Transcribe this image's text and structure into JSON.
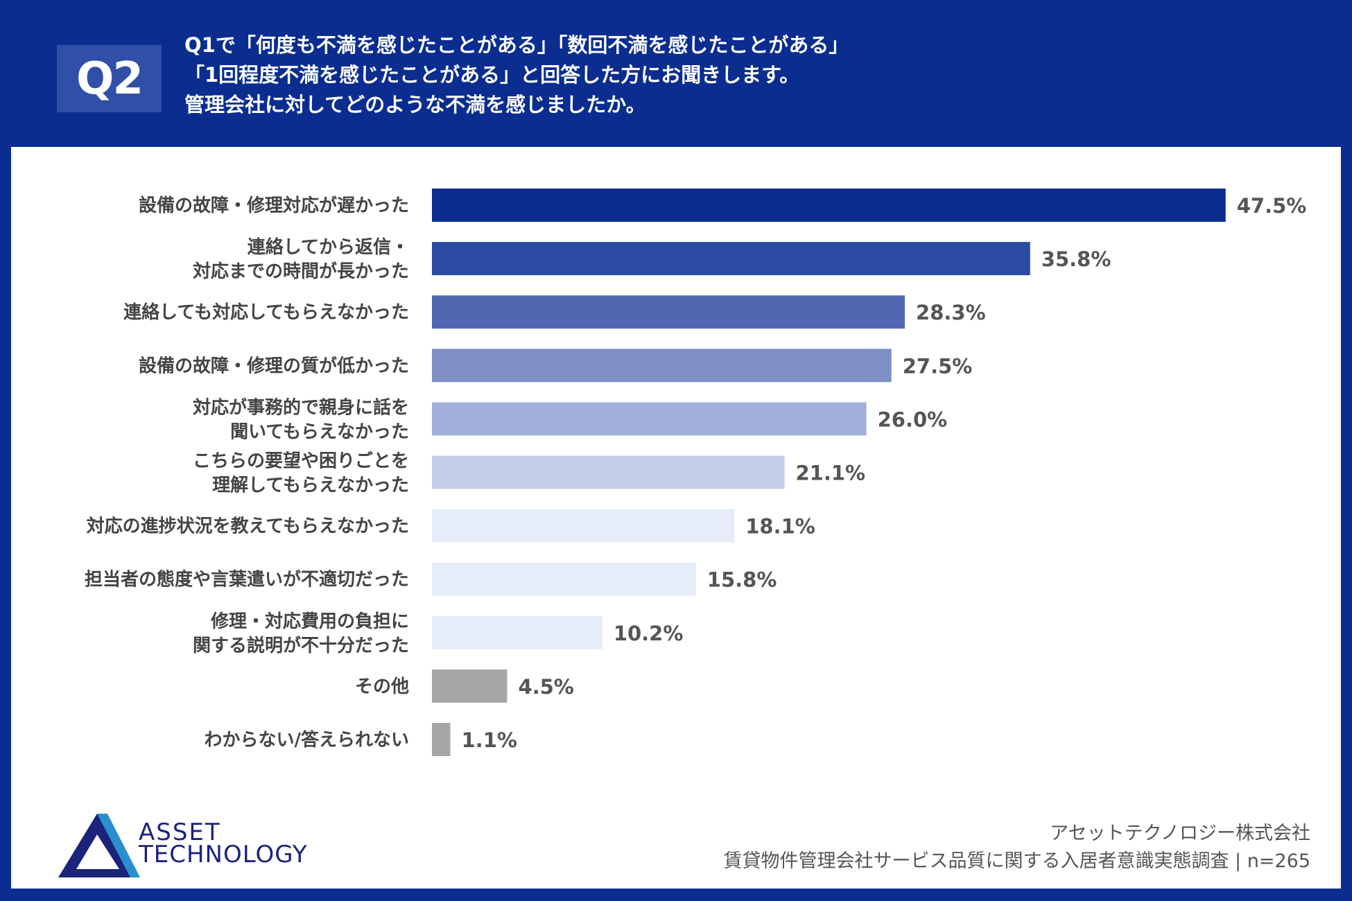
{
  "header": {
    "badge": "Q2",
    "question_lines": [
      "Q1で「何度も不満を感じたことがある」「数回不満を感じたことがある」",
      "「1回程度不満を感じたことがある」と回答した方にお聞きします。",
      "管理会社に対してどのような不満を感じましたか。"
    ]
  },
  "chart_data": {
    "type": "bar",
    "orientation": "horizontal",
    "title": "管理会社に対してどのような不満を感じましたか。",
    "unit": "%",
    "xlim": [
      0,
      50
    ],
    "grid": false,
    "categories": [
      [
        "設備の故障・修理対応が遅かった"
      ],
      [
        "連絡してから返信・",
        "対応までの時間が長かった"
      ],
      [
        "連絡しても対応してもらえなかった"
      ],
      [
        "設備の故障・修理の質が低かった"
      ],
      [
        "対応が事務的で親身に話を",
        "聞いてもらえなかった"
      ],
      [
        "こちらの要望や困りごとを",
        "理解してもらえなかった"
      ],
      [
        "対応の進捗状況を教えてもらえなかった"
      ],
      [
        "担当者の態度や言葉遣いが不適切だった"
      ],
      [
        "修理・対応費用の負担に",
        "関する説明が不十分だった"
      ],
      [
        "その他"
      ],
      [
        "わからない/答えられない"
      ]
    ],
    "values": [
      47.5,
      35.8,
      28.3,
      27.5,
      26.0,
      21.1,
      18.1,
      15.8,
      10.2,
      4.5,
      1.1
    ],
    "value_labels": [
      "47.5%",
      "35.8%",
      "28.3%",
      "27.5%",
      "26.0%",
      "21.1%",
      "18.1%",
      "15.8%",
      "10.2%",
      "4.5%",
      "1.1%"
    ],
    "colors": [
      "#0a2d8f",
      "#2e4ba3",
      "#5068b2",
      "#7e8fc6",
      "#a3aedb",
      "#c6cfea",
      "#e6edf8",
      "#e6edf8",
      "#e6edf8",
      "#a6a6a6",
      "#a6a6a6"
    ]
  },
  "footer": {
    "logo_text": [
      "ASSET",
      "TECHNOLOGY"
    ],
    "company": "アセットテクノロジー株式会社",
    "survey": "賃貸物件管理会社サービス品質に関する入居者意識実態調査 | n=265"
  }
}
